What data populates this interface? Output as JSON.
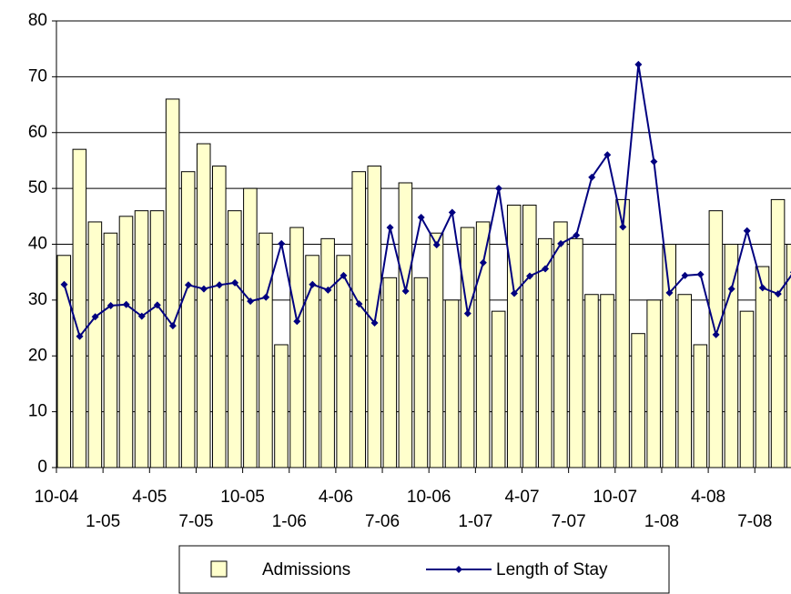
{
  "chart_data": {
    "type": "bar-line",
    "categories": [
      "10-04",
      null,
      null,
      "1-05",
      null,
      null,
      "4-05",
      null,
      null,
      "7-05",
      null,
      null,
      "10-05",
      null,
      null,
      "1-06",
      null,
      null,
      "4-06",
      null,
      null,
      "7-06",
      null,
      null,
      "10-06",
      null,
      null,
      "1-07",
      null,
      null,
      "4-07",
      null,
      null,
      "7-07",
      null,
      null,
      "10-07",
      null,
      null,
      "1-08",
      null,
      null,
      "4-08",
      null,
      null,
      "7-08",
      null,
      null
    ],
    "series": [
      {
        "name": "Admissions",
        "type": "bar",
        "color": "#FFFFCC",
        "values": [
          38,
          57,
          44,
          42,
          45,
          46,
          46,
          66,
          53,
          58,
          54,
          46,
          50,
          42,
          22,
          43,
          38,
          41,
          38,
          53,
          54,
          34,
          51,
          34,
          42,
          30,
          43,
          44,
          28,
          47,
          47,
          41,
          44,
          41,
          31,
          31,
          48,
          24,
          30,
          40,
          31,
          22,
          46,
          40,
          28,
          36,
          48,
          40
        ]
      },
      {
        "name": "Length of Stay",
        "type": "line",
        "color": "#000080",
        "values": [
          32.8,
          23.5,
          27,
          29,
          29.2,
          27.1,
          29.1,
          25.4,
          32.7,
          32,
          32.7,
          33.1,
          29.8,
          30.5,
          40.1,
          26.2,
          32.8,
          31.8,
          34.4,
          29.3,
          25.9,
          43,
          31.6,
          44.8,
          39.9,
          45.7,
          27.6,
          36.7,
          50,
          31.2,
          34.3,
          35.6,
          40.1,
          41.6,
          52,
          56,
          43.1,
          72.2,
          54.8,
          31.3,
          34.4,
          34.6,
          23.8,
          32,
          42.4,
          32.2,
          31.1,
          35
        ]
      }
    ],
    "ylim": [
      0,
      80
    ],
    "yticks": [
      0,
      10,
      20,
      30,
      40,
      50,
      60,
      70,
      80
    ],
    "grid": true,
    "legend": "bottom"
  }
}
